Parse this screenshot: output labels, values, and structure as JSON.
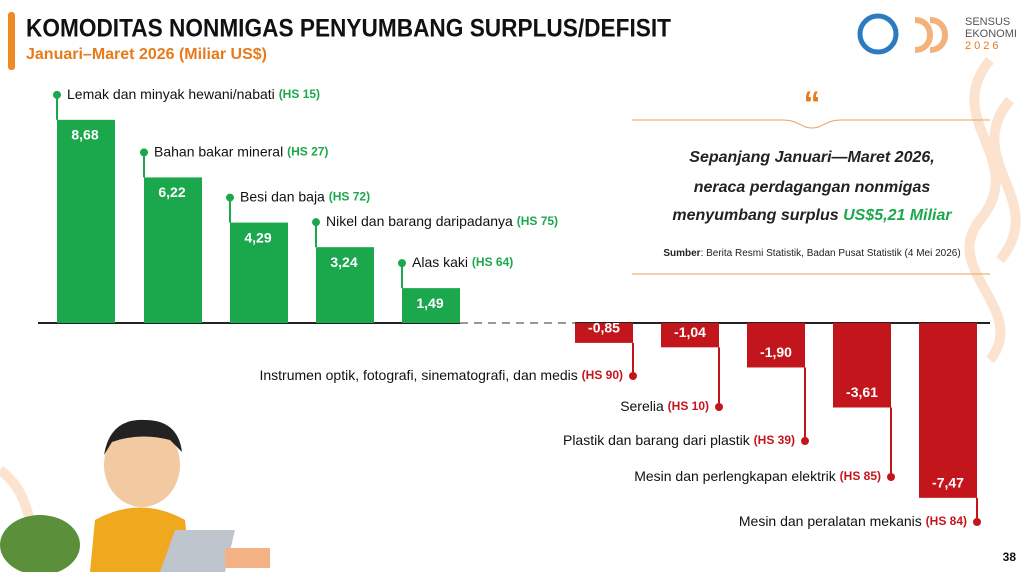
{
  "chart_data": {
    "type": "bar",
    "title": "KOMODITAS NONMIGAS PENYUMBANG SURPLUS/DEFISIT",
    "subtitle": "Januari–Maret 2026 (Miliar US$)",
    "categories": [
      "Lemak dan minyak hewani/nabati",
      "Bahan bakar mineral",
      "Besi dan baja",
      "Nikel dan barang daripadanya",
      "Alas kaki",
      "Instrumen optik, fotografi, sinematografi, dan medis",
      "Serelia",
      "Plastik dan barang dari plastik",
      "Mesin dan perlengkapan elektrik",
      "Mesin dan peralatan mekanis"
    ],
    "hs_codes": [
      "(HS 15)",
      "(HS 27)",
      "(HS 72)",
      "(HS 75)",
      "(HS 64)",
      "(HS 90)",
      "(HS 10)",
      "(HS 39)",
      "(HS 85)",
      "(HS 84)"
    ],
    "values": [
      8.68,
      6.22,
      4.29,
      3.24,
      1.49,
      -0.85,
      -1.04,
      -1.9,
      -3.61,
      -7.47
    ],
    "value_labels": [
      "8,68",
      "6,22",
      "4,29",
      "3,24",
      "1,49",
      "-0,85",
      "-1,04",
      "-1,90",
      "-3,61",
      "-7,47"
    ],
    "color": "#1ba84c",
    "negative_color": "#c3161c"
  },
  "quote": {
    "lines": [
      "Sepanjang Januari—Maret 2026,",
      "neraca perdagangan nonmigas",
      "menyumbang surplus "
    ],
    "highlight": "US$5,21 Miliar",
    "source_label": "Sumber",
    "source_text": ": Berita Resmi Statistik, Badan Pusat Statistik (4 Mei 2026)"
  },
  "logo": {
    "lines": [
      "SENSUS",
      "EKONOMI",
      "2026"
    ]
  },
  "page_number": "38"
}
